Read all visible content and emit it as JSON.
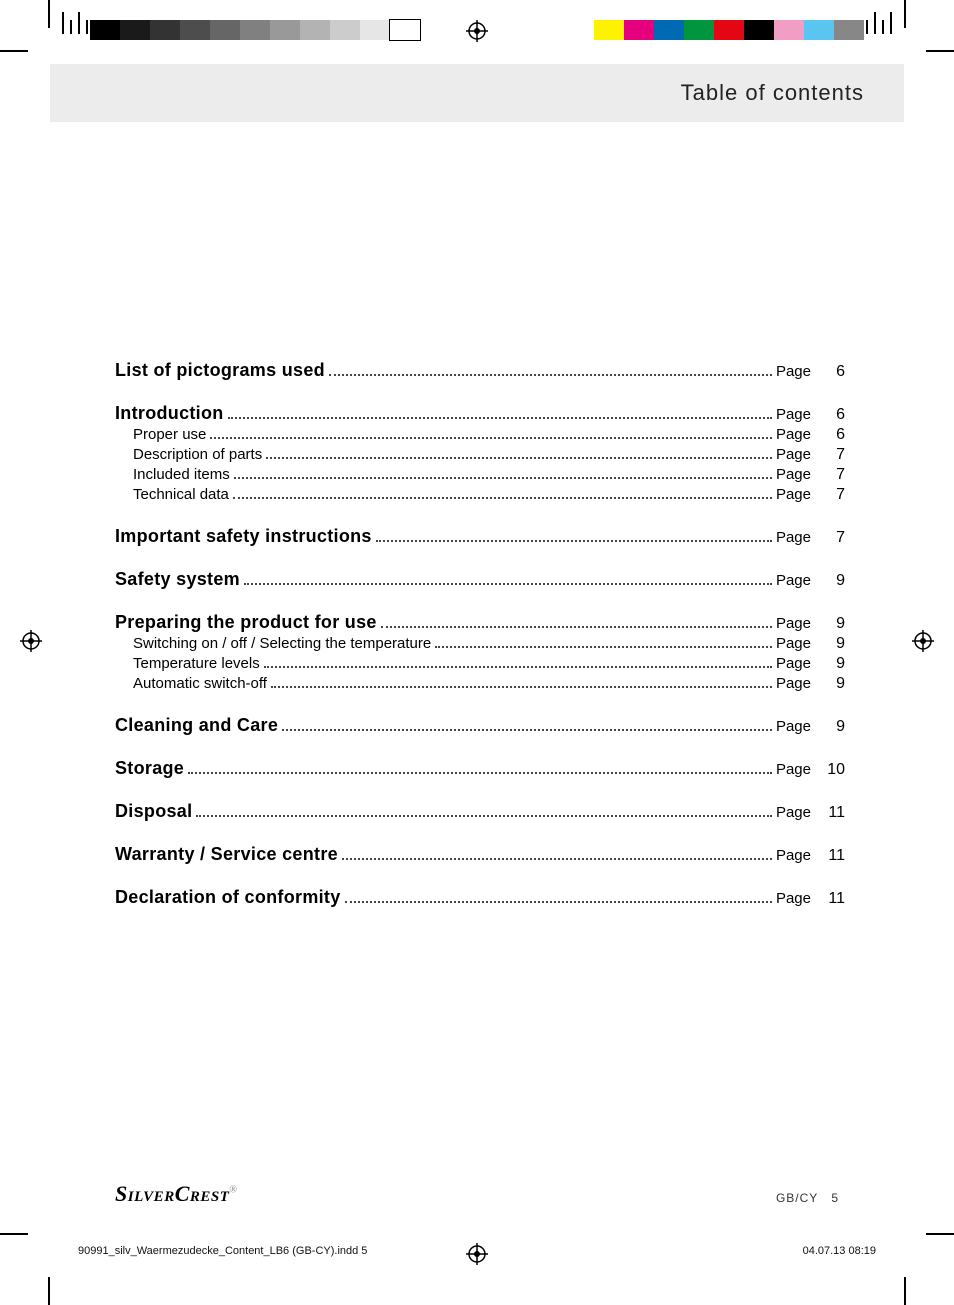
{
  "header": {
    "title": "Table of contents"
  },
  "page_label": "Page",
  "toc": [
    {
      "kind": "bold",
      "title": "List of pictograms used",
      "page": "6"
    },
    {
      "kind": "gap"
    },
    {
      "kind": "bold",
      "title": "Introduction",
      "page": "6"
    },
    {
      "kind": "sub",
      "title": "Proper use",
      "page": "6"
    },
    {
      "kind": "sub",
      "title": "Description of parts",
      "page": "7"
    },
    {
      "kind": "sub",
      "title": "Included items",
      "page": "7"
    },
    {
      "kind": "sub",
      "title": "Technical data",
      "page": "7"
    },
    {
      "kind": "gap"
    },
    {
      "kind": "bold",
      "title": "Important safety instructions",
      "page": "7"
    },
    {
      "kind": "gap"
    },
    {
      "kind": "bold",
      "title": "Safety system",
      "page": "9"
    },
    {
      "kind": "gap"
    },
    {
      "kind": "bold",
      "title": "Preparing the product for use",
      "page": "9"
    },
    {
      "kind": "sub",
      "title": "Switching on / off / Selecting the temperature",
      "page": "9"
    },
    {
      "kind": "sub",
      "title": "Temperature levels",
      "page": "9"
    },
    {
      "kind": "sub",
      "title": "Automatic switch-off",
      "page": "9"
    },
    {
      "kind": "gap"
    },
    {
      "kind": "bold",
      "title": "Cleaning and Care",
      "page": "9"
    },
    {
      "kind": "gap"
    },
    {
      "kind": "bold",
      "title": "Storage",
      "page": "10"
    },
    {
      "kind": "gap"
    },
    {
      "kind": "bold",
      "title": "Disposal",
      "page": "11"
    },
    {
      "kind": "gap"
    },
    {
      "kind": "bold",
      "title": "Warranty / Service centre",
      "page": "11"
    },
    {
      "kind": "gap"
    },
    {
      "kind": "bold",
      "title": "Declaration of conformity",
      "page": "11"
    }
  ],
  "footer": {
    "brand": "SilverCrest",
    "locale": "GB/CY",
    "page_num": "5",
    "slug_left": "90991_silv_Waermezudecke_Content_LB6 (GB-CY).indd   5",
    "slug_right": "04.07.13   08:19"
  },
  "print_marks": {
    "grey_steps": [
      "#000000",
      "#1a1a1a",
      "#333333",
      "#4d4d4d",
      "#666666",
      "#808080",
      "#999999",
      "#b3b3b3",
      "#cccccc",
      "#e6e6e6",
      "#ffffff"
    ],
    "color_bar": [
      "#fff200",
      "#e5007e",
      "#0069b4",
      "#009640",
      "#e30613",
      "#000000",
      "#f29ec4",
      "#5bc5f2",
      "#878787"
    ],
    "swatch_w": 30
  }
}
